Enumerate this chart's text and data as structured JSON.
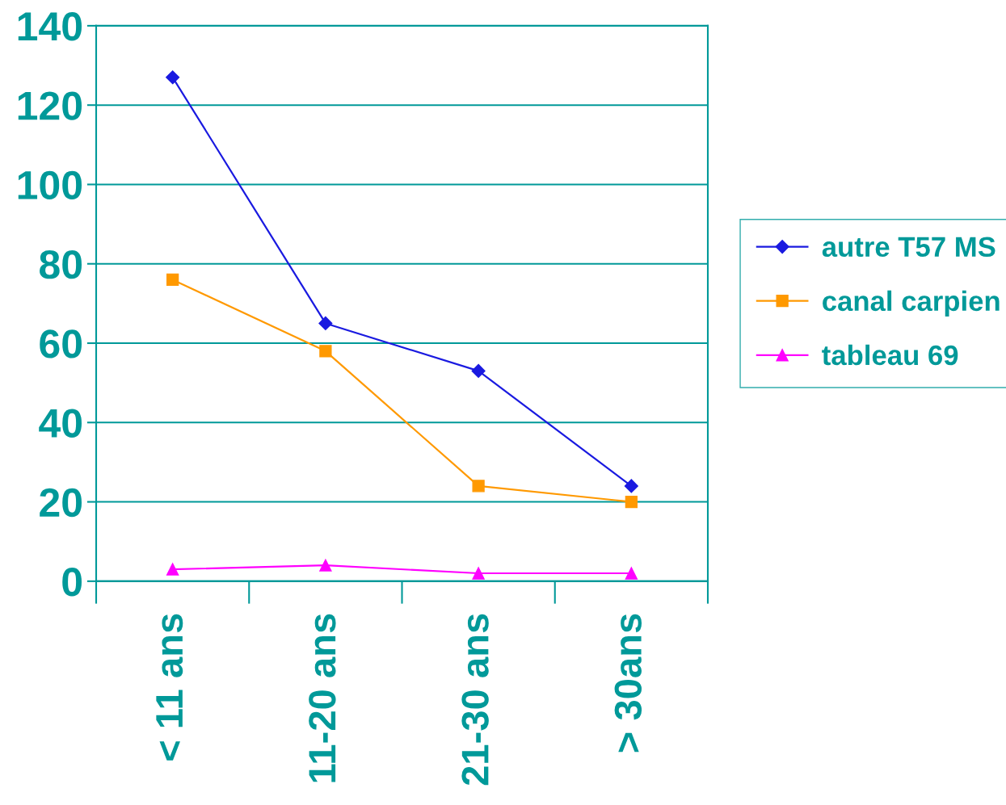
{
  "chart_data": {
    "type": "line",
    "categories": [
      "< 11 ans",
      "11-20 ans",
      "21-30 ans",
      "> 30ans"
    ],
    "series": [
      {
        "name": "autre T57 MS",
        "color": "#1a1ae0",
        "marker": "diamond",
        "values": [
          127,
          65,
          53,
          24
        ]
      },
      {
        "name": "canal carpien",
        "color": "#ff9900",
        "marker": "square",
        "values": [
          76,
          58,
          24,
          20
        ]
      },
      {
        "name": "tableau 69",
        "color": "#ff00ff",
        "marker": "triangle",
        "values": [
          3,
          4,
          2,
          2
        ]
      }
    ],
    "ylim": [
      0,
      140
    ],
    "yticks": [
      0,
      20,
      40,
      60,
      80,
      100,
      120,
      140
    ],
    "grid": "y",
    "legend": "right"
  }
}
